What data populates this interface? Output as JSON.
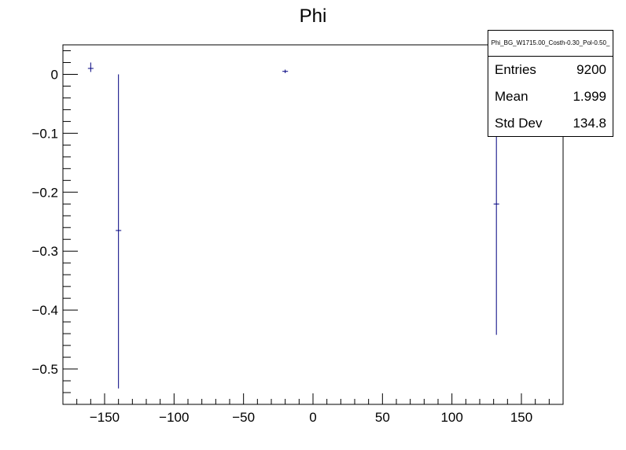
{
  "chart_data": {
    "type": "scatter",
    "title": "Phi",
    "xlabel": "",
    "ylabel": "",
    "xlim": [
      -180,
      180
    ],
    "ylim": [
      -0.56,
      0.05
    ],
    "x_ticks": [
      -150,
      -100,
      -50,
      0,
      50,
      100,
      150
    ],
    "y_ticks": [
      0,
      -0.1,
      -0.2,
      -0.3,
      -0.4,
      -0.5
    ],
    "x_tick_labels": [
      "−150",
      "−100",
      "−50",
      "0",
      "50",
      "100",
      "150"
    ],
    "y_tick_labels": [
      "0",
      "−0.1",
      "−0.2",
      "−0.3",
      "−0.4",
      "−0.5"
    ],
    "points": [
      {
        "x": -160,
        "y": 0.01,
        "yerr_low": 0.006,
        "yerr_high": 0.01,
        "xerr": 2
      },
      {
        "x": -140,
        "y": -0.265,
        "yerr_low": 0.268,
        "yerr_high": 0.265,
        "xerr": 2
      },
      {
        "x": -20,
        "y": 0.005,
        "yerr_low": 0.003,
        "yerr_high": 0.003,
        "xerr": 2
      },
      {
        "x": 132,
        "y": -0.22,
        "yerr_low": 0.222,
        "yerr_high": 0.22,
        "xerr": 2
      }
    ],
    "color": "#00007f",
    "grid": false,
    "stats": {
      "name": "Phi_BG_W1715.00_Costh-0.30_Pol-0.50_",
      "rows": [
        {
          "label": "Entries",
          "value": "9200"
        },
        {
          "label": "Mean",
          "value": "1.999"
        },
        {
          "label": "Std Dev",
          "value": "134.8"
        }
      ]
    }
  }
}
